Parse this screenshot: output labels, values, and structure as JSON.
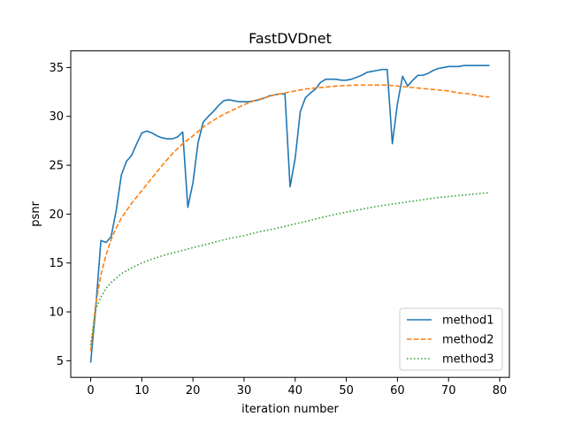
{
  "chart_data": {
    "type": "line",
    "title": "FastDVDnet",
    "xlabel": "iteration number",
    "ylabel": "psnr",
    "xlim": [
      -3.9,
      81.9
    ],
    "ylim": [
      3.3,
      36.7
    ],
    "xticks": [
      0,
      10,
      20,
      30,
      40,
      50,
      60,
      70,
      80
    ],
    "yticks": [
      5,
      10,
      15,
      20,
      25,
      30,
      35
    ],
    "grid": false,
    "legend_position": "lower right",
    "series": [
      {
        "name": "method1",
        "color": "#1f77b4",
        "style": "solid",
        "x": [
          0,
          1,
          2,
          3,
          4,
          5,
          6,
          7,
          8,
          9,
          10,
          11,
          12,
          13,
          14,
          15,
          16,
          17,
          18,
          19,
          20,
          21,
          22,
          23,
          24,
          25,
          26,
          27,
          28,
          29,
          30,
          31,
          32,
          33,
          34,
          35,
          36,
          37,
          38,
          39,
          40,
          41,
          42,
          43,
          44,
          45,
          46,
          47,
          48,
          49,
          50,
          51,
          52,
          53,
          54,
          55,
          56,
          57,
          58,
          59,
          60,
          61,
          62,
          63,
          64,
          65,
          66,
          67,
          68,
          69,
          70,
          71,
          72,
          73,
          74,
          75,
          76,
          77,
          78
        ],
        "values": [
          4.8,
          10.5,
          17.3,
          17.1,
          17.7,
          20.4,
          24.0,
          25.4,
          26.0,
          27.2,
          28.3,
          28.5,
          28.3,
          28.0,
          27.8,
          27.7,
          27.7,
          27.9,
          28.4,
          20.7,
          23.2,
          27.3,
          29.4,
          30.0,
          30.5,
          31.1,
          31.6,
          31.7,
          31.6,
          31.5,
          31.5,
          31.5,
          31.6,
          31.7,
          31.9,
          32.1,
          32.2,
          32.3,
          32.3,
          22.8,
          25.7,
          30.5,
          31.9,
          32.4,
          32.8,
          33.5,
          33.8,
          33.8,
          33.8,
          33.7,
          33.7,
          33.8,
          34.0,
          34.2,
          34.5,
          34.6,
          34.7,
          34.8,
          34.8,
          27.2,
          31.3,
          34.1,
          33.1,
          33.7,
          34.2,
          34.2,
          34.4,
          34.7,
          34.9,
          35.0,
          35.1,
          35.1,
          35.1,
          35.2,
          35.2,
          35.2,
          35.2,
          35.2,
          35.2
        ]
      },
      {
        "name": "method2",
        "color": "#ff7f0e",
        "style": "dashed",
        "x": [
          0,
          1,
          2,
          3,
          4,
          5,
          6,
          8,
          10,
          12,
          14,
          16,
          18,
          20,
          22,
          24,
          26,
          28,
          30,
          32,
          34,
          36,
          38,
          40,
          42,
          44,
          46,
          48,
          50,
          52,
          54,
          56,
          58,
          60,
          62,
          64,
          66,
          68,
          70,
          72,
          74,
          76,
          77,
          78
        ],
        "values": [
          6.0,
          10.8,
          13.8,
          15.8,
          17.4,
          18.6,
          19.6,
          21.1,
          22.4,
          23.7,
          25.0,
          26.2,
          27.2,
          28.0,
          28.9,
          29.6,
          30.2,
          30.7,
          31.2,
          31.6,
          31.9,
          32.2,
          32.4,
          32.6,
          32.8,
          32.9,
          33.0,
          33.1,
          33.15,
          33.2,
          33.2,
          33.2,
          33.2,
          33.1,
          33.0,
          32.9,
          32.8,
          32.7,
          32.6,
          32.4,
          32.3,
          32.1,
          32.0,
          32.0
        ]
      },
      {
        "name": "method3",
        "color": "#2ca02c",
        "style": "dotted",
        "x": [
          0,
          1,
          2,
          3,
          4,
          6,
          8,
          10,
          12,
          15,
          18,
          21,
          24,
          27,
          30,
          33,
          36,
          40,
          44,
          48,
          52,
          56,
          60,
          64,
          68,
          72,
          76,
          78
        ],
        "values": [
          6.6,
          10.3,
          11.5,
          12.4,
          13.0,
          13.9,
          14.5,
          15.0,
          15.4,
          15.9,
          16.3,
          16.7,
          17.1,
          17.5,
          17.8,
          18.2,
          18.5,
          19.0,
          19.5,
          20.0,
          20.4,
          20.8,
          21.1,
          21.4,
          21.7,
          21.9,
          22.1,
          22.2
        ]
      }
    ]
  }
}
